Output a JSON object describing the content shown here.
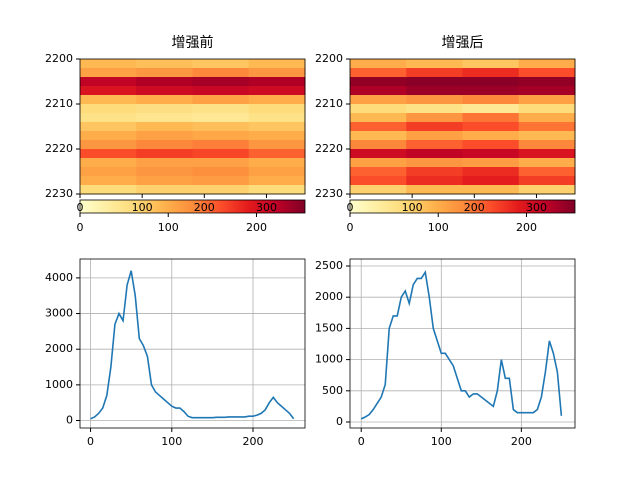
{
  "chart_data": [
    {
      "type": "heatmap",
      "title": "增强前",
      "xlim": [
        0,
        362
      ],
      "xticks": [
        0,
        100,
        200,
        300
      ],
      "ylim": [
        2230,
        2200
      ],
      "yticks": [
        2200,
        2210,
        2220,
        2230
      ],
      "colormap": [
        "#ffffcc",
        "#ffeda0",
        "#fed976",
        "#feb24c",
        "#fd8d3c",
        "#fc4e2a",
        "#e31a1c",
        "#bd0026",
        "#800026"
      ],
      "colorbar": {
        "lim": [
          0,
          255
        ],
        "ticks": [
          0,
          100,
          200
        ]
      },
      "values": [
        [
          90,
          85,
          80,
          90
        ],
        [
          110,
          120,
          130,
          120
        ],
        [
          220,
          230,
          235,
          230
        ],
        [
          200,
          210,
          215,
          210
        ],
        [
          90,
          100,
          110,
          100
        ],
        [
          60,
          55,
          50,
          60
        ],
        [
          50,
          45,
          40,
          50
        ],
        [
          80,
          90,
          85,
          80
        ],
        [
          100,
          110,
          105,
          100
        ],
        [
          120,
          130,
          135,
          120
        ],
        [
          160,
          170,
          165,
          150
        ],
        [
          100,
          110,
          110,
          100
        ],
        [
          110,
          120,
          125,
          110
        ],
        [
          100,
          110,
          115,
          100
        ],
        [
          60,
          70,
          70,
          60
        ]
      ]
    },
    {
      "type": "heatmap",
      "title": "增强后",
      "xlim": [
        0,
        362
      ],
      "xticks": [
        0,
        100,
        200,
        300
      ],
      "ylim": [
        2230,
        2200
      ],
      "yticks": [
        2200,
        2210,
        2220,
        2230
      ],
      "colormap": [
        "#ffffcc",
        "#ffeda0",
        "#fed976",
        "#feb24c",
        "#fd8d3c",
        "#fc4e2a",
        "#e31a1c",
        "#bd0026",
        "#800026"
      ],
      "colorbar": {
        "lim": [
          0,
          255
        ],
        "ticks": [
          0,
          100,
          200
        ]
      },
      "values": [
        [
          100,
          90,
          80,
          100
        ],
        [
          150,
          170,
          180,
          160
        ],
        [
          245,
          250,
          250,
          245
        ],
        [
          230,
          240,
          240,
          235
        ],
        [
          110,
          120,
          130,
          110
        ],
        [
          60,
          50,
          40,
          60
        ],
        [
          90,
          120,
          140,
          100
        ],
        [
          150,
          170,
          160,
          140
        ],
        [
          90,
          110,
          100,
          90
        ],
        [
          130,
          150,
          160,
          130
        ],
        [
          210,
          220,
          215,
          200
        ],
        [
          110,
          120,
          115,
          100
        ],
        [
          150,
          170,
          180,
          150
        ],
        [
          160,
          180,
          190,
          170
        ],
        [
          70,
          90,
          90,
          70
        ]
      ]
    },
    {
      "type": "line",
      "color": "#1f77b4",
      "grid": true,
      "xlim": [
        -13,
        264
      ],
      "xticks": [
        0,
        100,
        200
      ],
      "ylim": [
        -210,
        4530
      ],
      "yticks": [
        0,
        1000,
        2000,
        3000,
        4000
      ],
      "x": [
        0,
        5,
        10,
        15,
        20,
        25,
        30,
        35,
        40,
        45,
        50,
        55,
        60,
        65,
        70,
        75,
        80,
        85,
        90,
        95,
        100,
        105,
        110,
        115,
        120,
        125,
        130,
        135,
        140,
        145,
        150,
        155,
        160,
        165,
        170,
        175,
        180,
        185,
        190,
        195,
        200,
        205,
        210,
        215,
        220,
        225,
        230,
        235,
        240,
        245,
        250
      ],
      "values": [
        50,
        100,
        200,
        350,
        700,
        1500,
        2700,
        3000,
        2800,
        3800,
        4200,
        3500,
        2300,
        2100,
        1800,
        1000,
        800,
        700,
        600,
        500,
        400,
        350,
        350,
        250,
        120,
        80,
        80,
        80,
        80,
        80,
        80,
        90,
        90,
        90,
        100,
        100,
        100,
        100,
        100,
        120,
        120,
        150,
        200,
        300,
        500,
        650,
        500,
        400,
        300,
        200,
        50
      ]
    },
    {
      "type": "line",
      "color": "#1f77b4",
      "grid": true,
      "xlim": [
        -14,
        267
      ],
      "xticks": [
        0,
        100,
        200
      ],
      "ylim": [
        -96,
        2612
      ],
      "yticks": [
        0,
        500,
        1000,
        1500,
        2000,
        2500
      ],
      "x": [
        0,
        5,
        10,
        15,
        20,
        25,
        30,
        35,
        40,
        45,
        50,
        55,
        60,
        65,
        70,
        75,
        80,
        85,
        90,
        95,
        100,
        105,
        110,
        115,
        120,
        125,
        130,
        135,
        140,
        145,
        150,
        155,
        160,
        165,
        170,
        175,
        180,
        185,
        190,
        195,
        200,
        205,
        210,
        215,
        220,
        225,
        230,
        235,
        240,
        245,
        250
      ],
      "values": [
        50,
        80,
        120,
        200,
        300,
        400,
        600,
        1500,
        1700,
        1700,
        2000,
        2100,
        1900,
        2200,
        2300,
        2300,
        2400,
        2000,
        1500,
        1300,
        1100,
        1100,
        1000,
        900,
        700,
        500,
        500,
        400,
        450,
        450,
        400,
        350,
        300,
        250,
        500,
        1000,
        700,
        700,
        200,
        150,
        150,
        150,
        150,
        150,
        200,
        400,
        800,
        1300,
        1100,
        800,
        100
      ]
    }
  ]
}
